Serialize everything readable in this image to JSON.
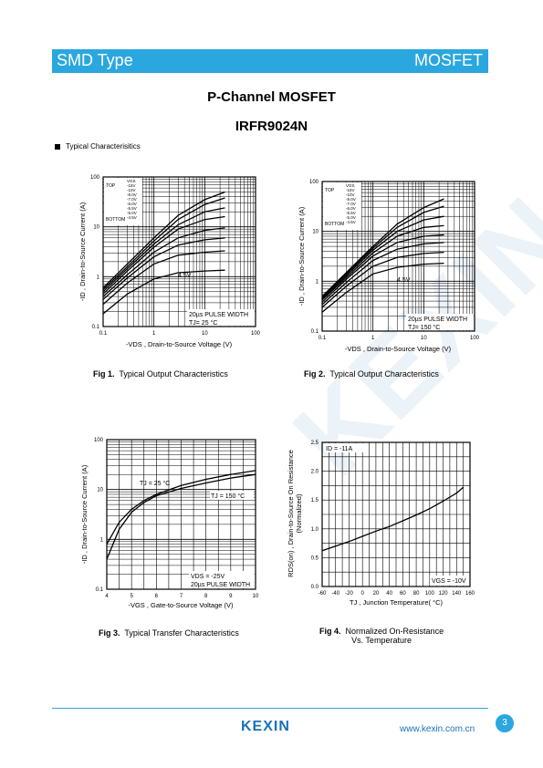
{
  "header": {
    "left": "SMD Type",
    "right": "MOSFET"
  },
  "title": "P-Channel MOSFET",
  "part": "IRFR9024N",
  "section": "Typical  Characterisitics",
  "footer": {
    "logo": "KEXIN",
    "url": "www.kexin.com.cn",
    "page": "3"
  },
  "watermark": "KEXIN",
  "colors": {
    "accent": "#2aa7df",
    "brand": "#1a72b8"
  },
  "charts": [
    {
      "type": "line",
      "caption_num": "Fig 1.",
      "caption_text": "Typical Output Characteristics",
      "ylabel": "-ID , Drain-to-Source Current (A)",
      "xlabel": "-VDS , Drain-to-Source Voltage (V)",
      "xticks": [
        "0.1",
        "1",
        "10",
        "100"
      ],
      "yticks": [
        "0.1",
        "1",
        "10",
        "100"
      ],
      "legend_top": "TOP",
      "legend_bottom": "BOTTOM",
      "legend_head": "VGS",
      "vgs": [
        "-15V",
        "-10V",
        "-8.0V",
        "-7.0V",
        "-6.0V",
        "-5.5V",
        "-5.0V",
        "-4.5V"
      ],
      "annot": "4.5V",
      "note1": "20µs PULSE WIDTH",
      "note2": "TJ= 25 °C"
    },
    {
      "type": "line",
      "caption_num": "Fig 2.",
      "caption_text": "Typical Output Characteristics",
      "ylabel": "-ID , Drain-to-Source Current (A)",
      "xlabel": "-VDS , Drain-to-Source Voltage (V)",
      "xticks": [
        "0.1",
        "1",
        "10",
        "100"
      ],
      "yticks": [
        "0.1",
        "1",
        "10",
        "100"
      ],
      "legend_top": "TOP",
      "legend_bottom": "BOTTOM",
      "legend_head": "VGS",
      "vgs": [
        "-15V",
        "-10V",
        "-8.0V",
        "-7.0V",
        "-6.0V",
        "-5.5V",
        "-5.0V",
        "-4.5V"
      ],
      "annot": "4.5V",
      "note1": "20µs PULSE WIDTH",
      "note2": "TJ= 150 °C"
    },
    {
      "type": "line",
      "caption_num": "Fig 3.",
      "caption_text": "Typical Transfer Characteristics",
      "ylabel": "-ID , Drain-to-Source Current (A)",
      "xlabel": "-VGS , Gate-to-Source Voltage (V)",
      "xticks": [
        "4",
        "5",
        "6",
        "7",
        "8",
        "9",
        "10"
      ],
      "yticks": [
        "0.1",
        "1",
        "10",
        "100"
      ],
      "series_a": "TJ = 25 °C",
      "series_b": "TJ = 150 °C",
      "note1": "VDS = -25V",
      "note2": "20µs PULSE WIDTH"
    },
    {
      "type": "line",
      "caption_num": "Fig 4.",
      "caption_text": "Normalized On-Resistance",
      "caption_text2": "Vs. Temperature",
      "ylabel1": "RDS(on) , Drain-to-Source On Resistance",
      "ylabel2": "(Normalized)",
      "xlabel": "TJ , Junction Temperature( °C)",
      "xticks": [
        "-60",
        "-40",
        "-20",
        "0",
        "20",
        "40",
        "60",
        "80",
        "100",
        "120",
        "140",
        "160"
      ],
      "yticks": [
        "0.0",
        "0.5",
        "1.0",
        "1.5",
        "2.0",
        "2.5"
      ],
      "annot": "ID = -11A",
      "note1": "VGS = -10V"
    }
  ],
  "chart_data": [
    {
      "type": "line",
      "title": "Typical Output Characteristics",
      "xlabel": "-VDS , Drain-to-Source Voltage (V)",
      "ylabel": "-ID , Drain-to-Source Current (A)",
      "xscale": "log",
      "yscale": "log",
      "xlim": [
        0.1,
        100
      ],
      "ylim": [
        0.1,
        100
      ],
      "series": [
        {
          "name": "-15V",
          "x": [
            0.1,
            0.3,
            1,
            3,
            10,
            25
          ],
          "y": [
            0.6,
            1.8,
            6,
            17,
            35,
            50
          ]
        },
        {
          "name": "-10V",
          "x": [
            0.1,
            0.3,
            1,
            3,
            10,
            25
          ],
          "y": [
            0.55,
            1.6,
            5.2,
            14,
            28,
            38
          ]
        },
        {
          "name": "-8.0V",
          "x": [
            0.1,
            0.3,
            1,
            3,
            10,
            25
          ],
          "y": [
            0.5,
            1.45,
            4.5,
            11,
            20,
            24
          ]
        },
        {
          "name": "-7.0V",
          "x": [
            0.1,
            0.3,
            1,
            3,
            10,
            25
          ],
          "y": [
            0.45,
            1.3,
            3.9,
            9,
            14,
            16
          ]
        },
        {
          "name": "-6.0V",
          "x": [
            0.1,
            0.3,
            1,
            3,
            10,
            25
          ],
          "y": [
            0.4,
            1.1,
            3.1,
            6,
            8.5,
            9.5
          ]
        },
        {
          "name": "-5.5V",
          "x": [
            0.1,
            0.3,
            1,
            3,
            10,
            25
          ],
          "y": [
            0.35,
            0.95,
            2.5,
            4.3,
            5.5,
            6
          ]
        },
        {
          "name": "-5.0V",
          "x": [
            0.1,
            0.3,
            1,
            3,
            10,
            25
          ],
          "y": [
            0.28,
            0.75,
            1.8,
            2.7,
            3.1,
            3.3
          ]
        },
        {
          "name": "-4.5V",
          "x": [
            0.1,
            0.3,
            1,
            3,
            10,
            25
          ],
          "y": [
            0.18,
            0.45,
            0.9,
            1.2,
            1.3,
            1.35
          ]
        }
      ]
    },
    {
      "type": "line",
      "title": "Typical Output Characteristics",
      "xlabel": "-VDS , Drain-to-Source Voltage (V)",
      "ylabel": "-ID , Drain-to-Source Current (A)",
      "xscale": "log",
      "yscale": "log",
      "xlim": [
        0.1,
        100
      ],
      "ylim": [
        0.1,
        100
      ],
      "series": [
        {
          "name": "-15V",
          "x": [
            0.1,
            0.3,
            1,
            3,
            10,
            25
          ],
          "y": [
            0.5,
            1.5,
            5,
            14,
            30,
            45
          ]
        },
        {
          "name": "-10V",
          "x": [
            0.1,
            0.3,
            1,
            3,
            10,
            25
          ],
          "y": [
            0.48,
            1.4,
            4.6,
            12,
            24,
            32
          ]
        },
        {
          "name": "-8.0V",
          "x": [
            0.1,
            0.3,
            1,
            3,
            10,
            25
          ],
          "y": [
            0.45,
            1.3,
            4.2,
            10,
            17,
            20
          ]
        },
        {
          "name": "-7.0V",
          "x": [
            0.1,
            0.3,
            1,
            3,
            10,
            25
          ],
          "y": [
            0.42,
            1.2,
            3.7,
            8,
            12,
            13
          ]
        },
        {
          "name": "-6.0V",
          "x": [
            0.1,
            0.3,
            1,
            3,
            10,
            25
          ],
          "y": [
            0.38,
            1.1,
            3.2,
            6,
            8,
            8.5
          ]
        },
        {
          "name": "-5.5V",
          "x": [
            0.1,
            0.3,
            1,
            3,
            10,
            25
          ],
          "y": [
            0.34,
            0.95,
            2.6,
            4.4,
            5.6,
            6
          ]
        },
        {
          "name": "-5.0V",
          "x": [
            0.1,
            0.3,
            1,
            3,
            10,
            25
          ],
          "y": [
            0.3,
            0.8,
            2.0,
            3.0,
            3.6,
            3.8
          ]
        },
        {
          "name": "-4.5V",
          "x": [
            0.1,
            0.3,
            1,
            3,
            10,
            25
          ],
          "y": [
            0.24,
            0.6,
            1.4,
            1.9,
            2.2,
            2.3
          ]
        }
      ]
    },
    {
      "type": "line",
      "title": "Typical Transfer Characteristics",
      "xlabel": "-VGS , Gate-to-Source Voltage (V)",
      "ylabel": "-ID , Drain-to-Source Current (A)",
      "xscale": "linear",
      "yscale": "log",
      "xlim": [
        4,
        10
      ],
      "ylim": [
        0.1,
        100
      ],
      "series": [
        {
          "name": "TJ = 25 °C",
          "x": [
            4.0,
            4.5,
            5,
            5.5,
            6,
            7,
            8,
            9,
            10
          ],
          "y": [
            0.4,
            1.6,
            3.5,
            5.5,
            7.5,
            10.5,
            13.5,
            17,
            20
          ]
        },
        {
          "name": "TJ = 150 °C",
          "x": [
            4.0,
            4.5,
            5,
            5.5,
            6,
            7,
            8,
            9,
            10
          ],
          "y": [
            0.8,
            2.2,
            4,
            6,
            8,
            12,
            16,
            20,
            24
          ]
        }
      ]
    },
    {
      "type": "line",
      "title": "Normalized On-Resistance Vs. Temperature",
      "xlabel": "TJ , Junction Temperature( °C)",
      "ylabel": "RDS(on) , Drain-to-Source On Resistance (Normalized)",
      "xscale": "linear",
      "yscale": "linear",
      "xlim": [
        -60,
        160
      ],
      "ylim": [
        0,
        2.5
      ],
      "series": [
        {
          "name": "ID = -11A",
          "x": [
            -60,
            -40,
            -20,
            0,
            20,
            40,
            60,
            80,
            100,
            120,
            140,
            150
          ],
          "y": [
            0.62,
            0.7,
            0.78,
            0.87,
            0.96,
            1.04,
            1.14,
            1.24,
            1.35,
            1.48,
            1.62,
            1.72
          ]
        }
      ]
    }
  ]
}
